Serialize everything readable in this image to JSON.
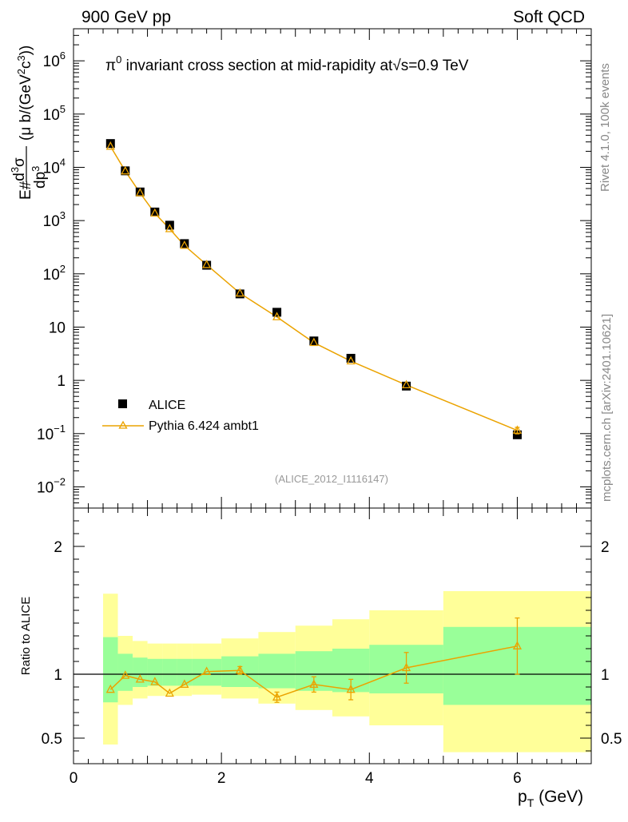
{
  "header": {
    "left": "900 GeV pp",
    "right": "Soft QCD"
  },
  "side_labels": {
    "rivet": "Rivet 4.1.0,  100k events",
    "mcplots": "mcplots.cern.ch [arXiv:2401.10621]"
  },
  "colors": {
    "data": "#000000",
    "mc": "#eba300",
    "band_inner": "#99ff99",
    "band_outer": "#ffff99"
  },
  "chart_data": [
    {
      "type": "scatter",
      "scale": "log",
      "title": "π⁰ invariant cross section at mid-rapidity at √s=0.9 TeV",
      "title_parts": {
        "pi": "π",
        "sup0": "0",
        "mid": " invariant cross section at mid-rapidity at",
        "sqrt": "√",
        "tail": "s=0.9 TeV"
      },
      "ylabel": "E d³σ/dp³ (μ b/(GeV²c³))",
      "ylabel_parts": {
        "e": "E#",
        "d1": "d",
        "s1": "3",
        "sigma": "σ",
        "d2": "dp",
        "s2": "3",
        "unit": "(μ b/(GeV",
        "two": "2",
        "c": "c",
        "three": "3",
        "close": "))"
      },
      "annotation": "(ALICE_2012_I1116147)",
      "xlim": [
        0,
        7
      ],
      "ylim": [
        0.004,
        4000000
      ],
      "yticks": [
        {
          "value": 1000000,
          "base": "10",
          "exp": "6"
        },
        {
          "value": 100000,
          "base": "10",
          "exp": "5"
        },
        {
          "value": 10000,
          "base": "10",
          "exp": "4"
        },
        {
          "value": 1000,
          "base": "10",
          "exp": "3"
        },
        {
          "value": 100,
          "base": "10",
          "exp": "2"
        },
        {
          "value": 10,
          "base": "10",
          "exp": ""
        },
        {
          "value": 1,
          "base": "1",
          "exp": ""
        },
        {
          "value": 0.1,
          "base": "10",
          "exp": "−1"
        },
        {
          "value": 0.01,
          "base": "10",
          "exp": "−2"
        }
      ],
      "legend": [
        {
          "name": "ALICE",
          "marker": "square"
        },
        {
          "name": "Pythia 6.424 ambt1",
          "marker": "triangle"
        }
      ],
      "series": [
        {
          "name": "ALICE",
          "x": [
            0.5,
            0.7,
            0.9,
            1.1,
            1.3,
            1.5,
            1.8,
            2.25,
            2.75,
            3.25,
            3.75,
            4.5,
            6.0
          ],
          "y": [
            28000,
            8600,
            3450,
            1450,
            820,
            370,
            145,
            42,
            19,
            5.5,
            2.6,
            0.78,
            0.095
          ]
        },
        {
          "name": "Pythia 6.424 ambt1",
          "x": [
            0.5,
            0.7,
            0.9,
            1.1,
            1.3,
            1.5,
            1.8,
            2.25,
            2.75,
            3.25,
            3.75,
            4.5,
            6.0
          ],
          "y": [
            24700,
            8500,
            3300,
            1370,
            700,
            340,
            148,
            43.3,
            15.5,
            5.1,
            2.3,
            0.82,
            0.115
          ],
          "y_err": [
            0,
            0,
            0,
            0,
            0,
            0,
            0,
            0,
            0,
            0,
            0,
            0,
            0.016
          ]
        }
      ]
    },
    {
      "type": "line",
      "ylabel": "Ratio to ALICE",
      "xlabel_parts": {
        "p": "p",
        "t": "T",
        "unit": " (GeV)"
      },
      "xlim": [
        0,
        7
      ],
      "ylim": [
        0.3,
        2.3
      ],
      "xticks": [
        "0",
        "2",
        "4",
        "6"
      ],
      "xtick_values": [
        0,
        2,
        4,
        6
      ],
      "yticks": [
        "0.5",
        "1",
        "2"
      ],
      "ytick_values": [
        0.5,
        1,
        2
      ],
      "reference": 1,
      "bands": {
        "x_edges": [
          0.4,
          0.6,
          0.8,
          1.0,
          1.2,
          1.4,
          1.6,
          2.0,
          2.5,
          3.0,
          3.5,
          4.0,
          5.0,
          7.0
        ],
        "inner_low": [
          0.78,
          0.87,
          0.9,
          0.91,
          0.91,
          0.91,
          0.91,
          0.9,
          0.89,
          0.87,
          0.86,
          0.85,
          0.76
        ],
        "inner_high": [
          1.29,
          1.16,
          1.13,
          1.12,
          1.12,
          1.12,
          1.12,
          1.14,
          1.16,
          1.18,
          1.2,
          1.23,
          1.37
        ],
        "outer_low": [
          0.45,
          0.76,
          0.81,
          0.83,
          0.83,
          0.83,
          0.84,
          0.81,
          0.77,
          0.72,
          0.67,
          0.6,
          0.39
        ],
        "outer_high": [
          1.63,
          1.3,
          1.26,
          1.24,
          1.24,
          1.24,
          1.24,
          1.28,
          1.33,
          1.38,
          1.43,
          1.5,
          1.65
        ]
      },
      "series": [
        {
          "name": "Pythia 6.424 ambt1 / ALICE",
          "x": [
            0.5,
            0.7,
            0.9,
            1.1,
            1.3,
            1.5,
            1.8,
            2.25,
            2.75,
            3.25,
            3.75,
            4.5,
            6.0
          ],
          "y": [
            0.88,
            0.99,
            0.96,
            0.94,
            0.85,
            0.92,
            1.02,
            1.03,
            0.82,
            0.92,
            0.88,
            1.05,
            1.22
          ],
          "y_err": [
            0,
            0,
            0,
            0,
            0,
            0,
            0,
            0.03,
            0.04,
            0.06,
            0.08,
            0.12,
            0.22
          ]
        }
      ]
    }
  ]
}
